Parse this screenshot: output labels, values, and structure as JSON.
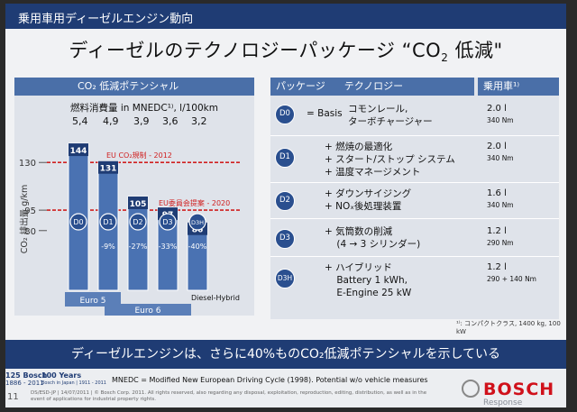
{
  "header": {
    "topic": "乗用車用ディーゼルエンジン動向",
    "title_main": "ディーゼルのテクノロジーパッケージ “CO",
    "title_sub": "2",
    "title_end": " 低減\""
  },
  "left_panel": {
    "heading": "CO₂ 低減ポテンシャル",
    "fuel_label": "燃料消費量 in MNEDC¹⁾,  l/100km",
    "fuel_values": [
      "5,4",
      "4,9",
      "3,9",
      "3,6",
      "3,2"
    ],
    "y_axis_title": "CO₂ 排出量  g/km",
    "y_ticks": [
      "130",
      "95",
      "80"
    ],
    "eu_reg_2012": "EU CO₂規制 - 2012",
    "eu_proposal_2020": "EU委員会提案 - 2020",
    "diesel_hybrid": "Diesel-Hybrid",
    "euro5": "Euro 5",
    "euro6": "Euro 6"
  },
  "chart_data": {
    "type": "bar",
    "categories": [
      "D0",
      "D1",
      "D2",
      "D3",
      "D3H"
    ],
    "values": [
      144,
      131,
      105,
      97,
      86
    ],
    "reductions": [
      "",
      "-9%",
      "-27%",
      "-33%",
      "-40%"
    ],
    "reference_lines": [
      {
        "value": 130,
        "label": "EU CO₂規制 - 2012"
      },
      {
        "value": 95,
        "label": "EU委員会提案 - 2020"
      }
    ],
    "ylabel": "CO₂ 排出量  g/km",
    "ytick_values": [
      130,
      95,
      80
    ],
    "ylim": [
      60,
      150
    ]
  },
  "right_panel": {
    "col_package": "パッケージ",
    "col_tech": "テクノロジー",
    "col_vehicle": "乗用車¹⁾",
    "rows": [
      {
        "badge": "D0",
        "basis": "= Basis",
        "techs": [
          "コモンレール,",
          "ターボチャージャー"
        ],
        "liters": "2.0 l",
        "power": "340 Nm"
      },
      {
        "badge": "D1",
        "techs": [
          "+  燃焼の最適化",
          "+  スタート/ストップ システム",
          "+  温度マネージメント"
        ],
        "liters": "2.0 l",
        "power": "340 Nm"
      },
      {
        "badge": "D2",
        "techs": [
          "+  ダウンサイジング",
          "+  NOₓ後処理装置"
        ],
        "liters": "1.6 l",
        "power": "340 Nm"
      },
      {
        "badge": "D3",
        "techs": [
          "+  気筒数の削減",
          "    (4 → 3 シリンダー)"
        ],
        "liters": "1.2 l",
        "power": "290 Nm"
      },
      {
        "badge": "D3H",
        "techs": [
          "+  ハイブリッド",
          "    Battery 1 kWh,",
          "    E-Engine 25 kW"
        ],
        "liters": "1.2 l",
        "power": "290 + 140 Nm"
      }
    ],
    "footnote": "¹⁾: コンパクトクラス, 1400 kg, 100 kW"
  },
  "banner": "ディーゼルエンジンは、さらに40%ものCO₂低減ポテンシャルを示している",
  "footer": {
    "page": "11",
    "b125": "125 Bosch",
    "b125_years": "1886 - 2011",
    "b100": "100 Years",
    "b100_sub": "Bosch in Japan | 1911 - 2011",
    "mnedc": "MNEDC = Modified New European Driving Cycle (1998). Potential w/o vehicle measures",
    "copyright": "DS/ESD-JP | 14/07/2011 | © Bosch Corp. 2011. All rights reserved, also regarding any disposal, exploitation, reproduction, editing, distribution, as well as in the event of applications for industrial property rights.",
    "brand": "BOSCH",
    "watermark": "Response"
  },
  "colors": {
    "navy": "#1f3c74",
    "panel_head": "#4a6fa8",
    "bar": "#4a72b2",
    "red": "#d02020",
    "brand_red": "#d0111b"
  }
}
